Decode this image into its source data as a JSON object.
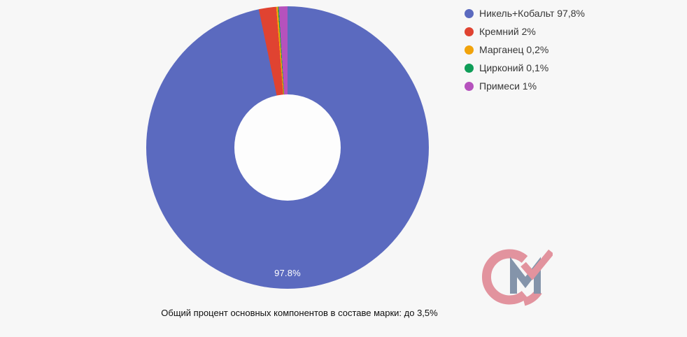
{
  "background": "#f7f7f7",
  "chart_data": {
    "type": "pie",
    "subtype": "donut",
    "categories": [
      "Никель+Кобальт",
      "Кремний",
      "Марганец",
      "Цирконий",
      "Примеси"
    ],
    "values": [
      97.8,
      2,
      0.2,
      0.1,
      1
    ],
    "unit": "%",
    "colors": [
      "#5b6abf",
      "#e04331",
      "#f1a30b",
      "#0f9d58",
      "#b552bd"
    ],
    "legend_labels": [
      "Никель+Кобальт 97,8%",
      "Кремний 2%",
      "Марганец 0,2%",
      "Цирконий 0,1%",
      "Примеси 1%"
    ],
    "legend_position": "right-top",
    "start_angle_deg": 0,
    "clockwise": true,
    "hole_ratio": 0.376,
    "slice_label": "97.8%",
    "slice_label_color": "#ffffff",
    "caption": "Общий процент основных компонентов в составе марки: до 3,5%"
  },
  "watermark": {
    "text": "СМ",
    "c_color": "#e2939e",
    "m_color": "#8494aa"
  }
}
